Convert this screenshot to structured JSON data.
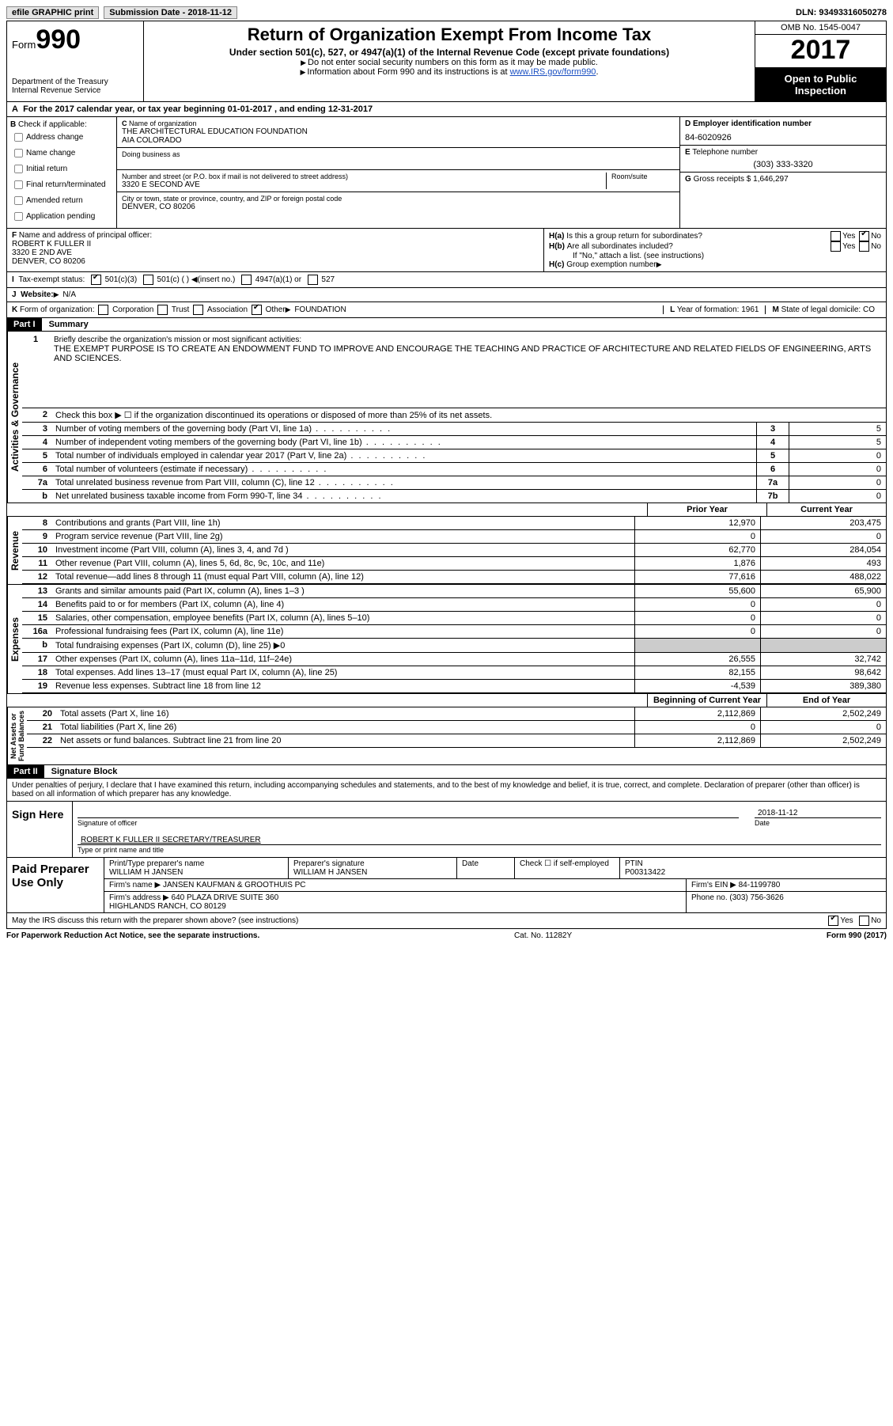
{
  "topbar": {
    "efile": "efile GRAPHIC print",
    "submission_label": "Submission Date - 2018-11-12",
    "dln": "DLN: 93493316050278"
  },
  "header": {
    "form_label": "Form",
    "form_num": "990",
    "dept": "Department of the Treasury\nInternal Revenue Service",
    "title": "Return of Organization Exempt From Income Tax",
    "sub1": "Under section 501(c), 527, or 4947(a)(1) of the Internal Revenue Code (except private foundations)",
    "sub2a": "Do not enter social security numbers on this form as it may be made public.",
    "sub2b": "Information about Form 990 and its instructions is at ",
    "irs_link": "www.IRS.gov/form990",
    "omb": "OMB No. 1545-0047",
    "year": "2017",
    "inspect": "Open to Public Inspection"
  },
  "rowA": "For the 2017 calendar year, or tax year beginning 01-01-2017   , and ending 12-31-2017",
  "colB": {
    "lbl": "Check if applicable:",
    "items": [
      "Address change",
      "Name change",
      "Initial return",
      "Final return/terminated",
      "Amended return",
      "Application pending"
    ]
  },
  "colC": {
    "name_lbl": "Name of organization",
    "name": "THE ARCHITECTURAL EDUCATION FOUNDATION\nAIA COLORADO",
    "dba_lbl": "Doing business as",
    "street_lbl": "Number and street (or P.O. box if mail is not delivered to street address)",
    "room_lbl": "Room/suite",
    "street": "3320 E SECOND AVE",
    "city_lbl": "City or town, state or province, country, and ZIP or foreign postal code",
    "city": "DENVER, CO  80206"
  },
  "colD": {
    "ein_lbl": "Employer identification number",
    "ein": "84-6020926",
    "tel_lbl": "Telephone number",
    "tel": "(303) 333-3320",
    "gross_lbl": "Gross receipts $",
    "gross": "1,646,297"
  },
  "colF": {
    "lbl": "Name and address of principal officer:",
    "name": "ROBERT K FULLER II",
    "addr1": "3320 E 2ND AVE",
    "addr2": "DENVER, CO  80206"
  },
  "colH": {
    "a": "Is this a group return for subordinates?",
    "b": "Are all subordinates included?",
    "b_note": "If \"No,\" attach a list. (see instructions)",
    "c": "Group exemption number"
  },
  "rowI": {
    "lbl": "Tax-exempt status:",
    "opts": [
      "501(c)(3)",
      "501(c) (   )",
      "(insert no.)",
      "4947(a)(1) or",
      "527"
    ]
  },
  "rowJ": {
    "lbl": "Website:",
    "val": "N/A"
  },
  "rowK": {
    "lbl": "Form of organization:",
    "opts": [
      "Corporation",
      "Trust",
      "Association",
      "Other"
    ],
    "other_val": "FOUNDATION",
    "year_lbl": "Year of formation:",
    "year_val": "1961",
    "state_lbl": "State of legal domicile:",
    "state_val": "CO"
  },
  "part1": {
    "hdr": "Part I",
    "title": "Summary",
    "mission_lbl": "Briefly describe the organization's mission or most significant activities:",
    "mission": "THE EXEMPT PURPOSE IS TO CREATE AN ENDOWMENT FUND TO IMPROVE AND ENCOURAGE THE TEACHING AND PRACTICE OF ARCHITECTURE AND RELATED FIELDS OF ENGINEERING, ARTS AND SCIENCES.",
    "line2": "Check this box ▶ ☐  if the organization discontinued its operations or disposed of more than 25% of its net assets.",
    "gov_lines": [
      {
        "n": "3",
        "t": "Number of voting members of the governing body (Part VI, line 1a)",
        "bx": "3",
        "v": "5"
      },
      {
        "n": "4",
        "t": "Number of independent voting members of the governing body (Part VI, line 1b)",
        "bx": "4",
        "v": "5"
      },
      {
        "n": "5",
        "t": "Total number of individuals employed in calendar year 2017 (Part V, line 2a)",
        "bx": "5",
        "v": "0"
      },
      {
        "n": "6",
        "t": "Total number of volunteers (estimate if necessary)",
        "bx": "6",
        "v": "0"
      },
      {
        "n": "7a",
        "t": "Total unrelated business revenue from Part VIII, column (C), line 12",
        "bx": "7a",
        "v": "0"
      },
      {
        "n": "b",
        "t": "Net unrelated business taxable income from Form 990-T, line 34",
        "bx": "7b",
        "v": "0"
      }
    ],
    "col_hdrs": {
      "prior": "Prior Year",
      "current": "Current Year"
    },
    "revenue": [
      {
        "n": "8",
        "t": "Contributions and grants (Part VIII, line 1h)",
        "p": "12,970",
        "c": "203,475"
      },
      {
        "n": "9",
        "t": "Program service revenue (Part VIII, line 2g)",
        "p": "0",
        "c": "0"
      },
      {
        "n": "10",
        "t": "Investment income (Part VIII, column (A), lines 3, 4, and 7d )",
        "p": "62,770",
        "c": "284,054"
      },
      {
        "n": "11",
        "t": "Other revenue (Part VIII, column (A), lines 5, 6d, 8c, 9c, 10c, and 11e)",
        "p": "1,876",
        "c": "493"
      },
      {
        "n": "12",
        "t": "Total revenue—add lines 8 through 11 (must equal Part VIII, column (A), line 12)",
        "p": "77,616",
        "c": "488,022"
      }
    ],
    "expenses": [
      {
        "n": "13",
        "t": "Grants and similar amounts paid (Part IX, column (A), lines 1–3 )",
        "p": "55,600",
        "c": "65,900"
      },
      {
        "n": "14",
        "t": "Benefits paid to or for members (Part IX, column (A), line 4)",
        "p": "0",
        "c": "0"
      },
      {
        "n": "15",
        "t": "Salaries, other compensation, employee benefits (Part IX, column (A), lines 5–10)",
        "p": "0",
        "c": "0"
      },
      {
        "n": "16a",
        "t": "Professional fundraising fees (Part IX, column (A), line 11e)",
        "p": "0",
        "c": "0"
      },
      {
        "n": "b",
        "t": "Total fundraising expenses (Part IX, column (D), line 25) ▶0",
        "p": "",
        "c": "",
        "shade": true
      },
      {
        "n": "17",
        "t": "Other expenses (Part IX, column (A), lines 11a–11d, 11f–24e)",
        "p": "26,555",
        "c": "32,742"
      },
      {
        "n": "18",
        "t": "Total expenses. Add lines 13–17 (must equal Part IX, column (A), line 25)",
        "p": "82,155",
        "c": "98,642"
      },
      {
        "n": "19",
        "t": "Revenue less expenses. Subtract line 18 from line 12",
        "p": "-4,539",
        "c": "389,380"
      }
    ],
    "net_hdrs": {
      "begin": "Beginning of Current Year",
      "end": "End of Year"
    },
    "netassets": [
      {
        "n": "20",
        "t": "Total assets (Part X, line 16)",
        "p": "2,112,869",
        "c": "2,502,249"
      },
      {
        "n": "21",
        "t": "Total liabilities (Part X, line 26)",
        "p": "0",
        "c": "0"
      },
      {
        "n": "22",
        "t": "Net assets or fund balances. Subtract line 21 from line 20",
        "p": "2,112,869",
        "c": "2,502,249"
      }
    ],
    "tabs": {
      "gov": "Activities & Governance",
      "rev": "Revenue",
      "exp": "Expenses",
      "net": "Net Assets or\nFund Balances"
    }
  },
  "part2": {
    "hdr": "Part II",
    "title": "Signature Block",
    "decl": "Under penalties of perjury, I declare that I have examined this return, including accompanying schedules and statements, and to the best of my knowledge and belief, it is true, correct, and complete. Declaration of preparer (other than officer) is based on all information of which preparer has any knowledge.",
    "sign_here": "Sign Here",
    "sig_officer": "Signature of officer",
    "sig_date": "Date",
    "sig_date_val": "2018-11-12",
    "officer": "ROBERT K FULLER II  SECRETARY/TREASURER",
    "type_lbl": "Type or print name and title",
    "paid": "Paid Preparer Use Only",
    "prep_name_lbl": "Print/Type preparer's name",
    "prep_name": "WILLIAM H JANSEN",
    "prep_sig_lbl": "Preparer's signature",
    "prep_sig": "WILLIAM H JANSEN",
    "date_lbl": "Date",
    "check_lbl": "Check ☐ if self-employed",
    "ptin_lbl": "PTIN",
    "ptin": "P00313422",
    "firm_name_lbl": "Firm's name   ▶",
    "firm_name": "JANSEN KAUFMAN & GROOTHUIS PC",
    "firm_ein_lbl": "Firm's EIN ▶",
    "firm_ein": "84-1199780",
    "firm_addr_lbl": "Firm's address ▶",
    "firm_addr": "640 PLAZA DRIVE SUITE 360\nHIGHLANDS RANCH, CO  80129",
    "firm_phone_lbl": "Phone no.",
    "firm_phone": "(303) 756-3626",
    "discuss": "May the IRS discuss this return with the preparer shown above? (see instructions)"
  },
  "footer": {
    "left": "For Paperwork Reduction Act Notice, see the separate instructions.",
    "mid": "Cat. No. 11282Y",
    "right": "Form 990 (2017)"
  }
}
